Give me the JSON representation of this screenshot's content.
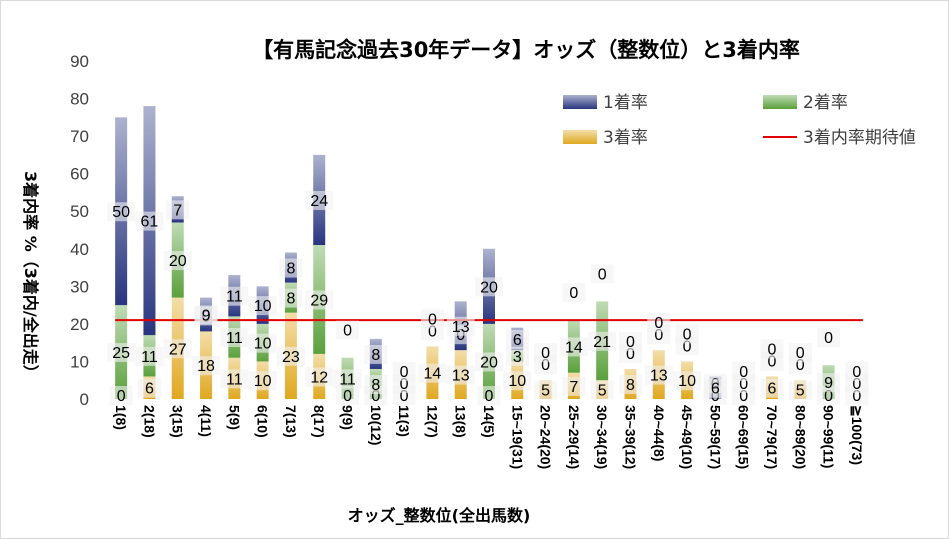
{
  "chart_data": {
    "type": "bar",
    "stacked": true,
    "title": "【有馬記念過去30年データ】オッズ（整数位）と3着内率",
    "xlabel": "オッズ_整数位(全出馬数)",
    "ylabel": "3着内率 %（3着内/全出走）",
    "ylim": [
      0,
      90
    ],
    "yticks": [
      "0",
      "10",
      "20",
      "30",
      "40",
      "50",
      "60",
      "70",
      "80",
      "90"
    ],
    "grid": false,
    "legend_position": "top-right",
    "categories": [
      "1(8)",
      "2(18)",
      "3(15)",
      "4(11)",
      "5(9)",
      "6(10)",
      "7(13)",
      "8(17)",
      "9(9)",
      "10(12)",
      "11(3)",
      "12(7)",
      "13(8)",
      "14(5)",
      "15~19(31)",
      "20~24(20)",
      "25~29(14)",
      "30~34(19)",
      "35~39(12)",
      "40~44(8)",
      "45~49(10)",
      "50~59(17)",
      "60~69(15)",
      "70~79(17)",
      "80~89(20)",
      "90~99(11)",
      "≧100(73)"
    ],
    "series": [
      {
        "name": "3着率",
        "color": "#e0a820",
        "values": [
          0,
          6,
          27,
          18,
          11,
          10,
          23,
          12,
          0,
          0,
          0,
          14,
          13,
          0,
          10,
          5,
          7,
          5,
          8,
          13,
          10,
          0,
          0,
          6,
          5,
          0,
          0
        ]
      },
      {
        "name": "2着率",
        "color": "#5aa03c",
        "values": [
          25,
          11,
          20,
          0,
          11,
          10,
          8,
          29,
          11,
          8,
          0,
          0,
          0,
          20,
          3,
          0,
          14,
          21,
          0,
          0,
          0,
          0,
          0,
          0,
          0,
          9,
          0
        ]
      },
      {
        "name": "1着率",
        "color": "#28357f",
        "values": [
          50,
          61,
          7,
          9,
          11,
          10,
          8,
          24,
          0,
          8,
          0,
          0,
          13,
          20,
          6,
          0,
          0,
          0,
          0,
          0,
          0,
          6,
          0,
          0,
          0,
          0,
          0
        ]
      }
    ],
    "reference_line": {
      "name": "3着内率期待値",
      "value": 21,
      "color": "#e00000"
    }
  },
  "legend": {
    "order": [
      "1着率",
      "2着率",
      "3着率",
      "3着内率期待値"
    ]
  }
}
